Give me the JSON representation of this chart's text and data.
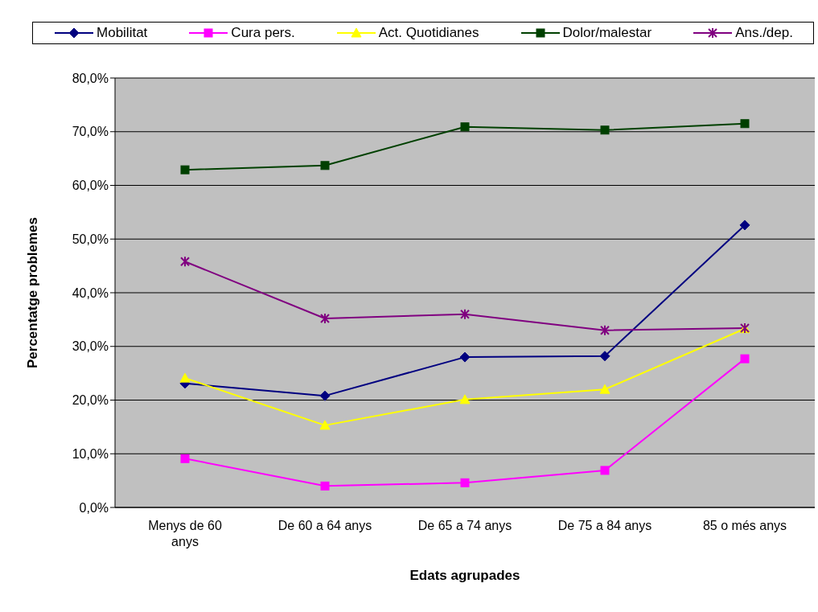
{
  "chart_data": {
    "type": "line",
    "xlabel": "Edats agrupades",
    "ylabel": "Percentatge problemes",
    "categories": [
      "Menys de 60 anys",
      "De 60 a 64 anys",
      "De 65 a 74 anys",
      "De 75 a 84 anys",
      "85 o més anys"
    ],
    "series": [
      {
        "name": "Mobilitat",
        "color": "#000080",
        "marker": "diamond",
        "values": [
          23.1,
          20.8,
          28.0,
          28.2,
          52.6
        ]
      },
      {
        "name": "Cura pers.",
        "color": "#ff00ff",
        "marker": "square",
        "values": [
          9.1,
          4.0,
          4.6,
          6.9,
          27.7
        ]
      },
      {
        "name": "Act. Quotidianes",
        "color": "#ffff00",
        "marker": "triangle",
        "values": [
          24.1,
          15.3,
          20.1,
          22.0,
          33.3
        ]
      },
      {
        "name": "Dolor/malestar",
        "color": "#004000",
        "marker": "square",
        "values": [
          62.9,
          63.7,
          70.9,
          70.3,
          71.5
        ]
      },
      {
        "name": "Ans./dep.",
        "color": "#800080",
        "marker": "cross",
        "values": [
          45.8,
          35.2,
          36.0,
          33.0,
          33.4
        ]
      }
    ],
    "ylim": [
      0,
      80
    ],
    "yticks": [
      {
        "value": 0,
        "label": "0,0%"
      },
      {
        "value": 10,
        "label": "10,0%"
      },
      {
        "value": 20,
        "label": "20,0%"
      },
      {
        "value": 30,
        "label": "30,0%"
      },
      {
        "value": 40,
        "label": "40,0%"
      },
      {
        "value": 50,
        "label": "50,0%"
      },
      {
        "value": 60,
        "label": "60,0%"
      },
      {
        "value": 70,
        "label": "70,0%"
      },
      {
        "value": 80,
        "label": "80,0%"
      }
    ],
    "grid": "y",
    "legend": "top"
  }
}
